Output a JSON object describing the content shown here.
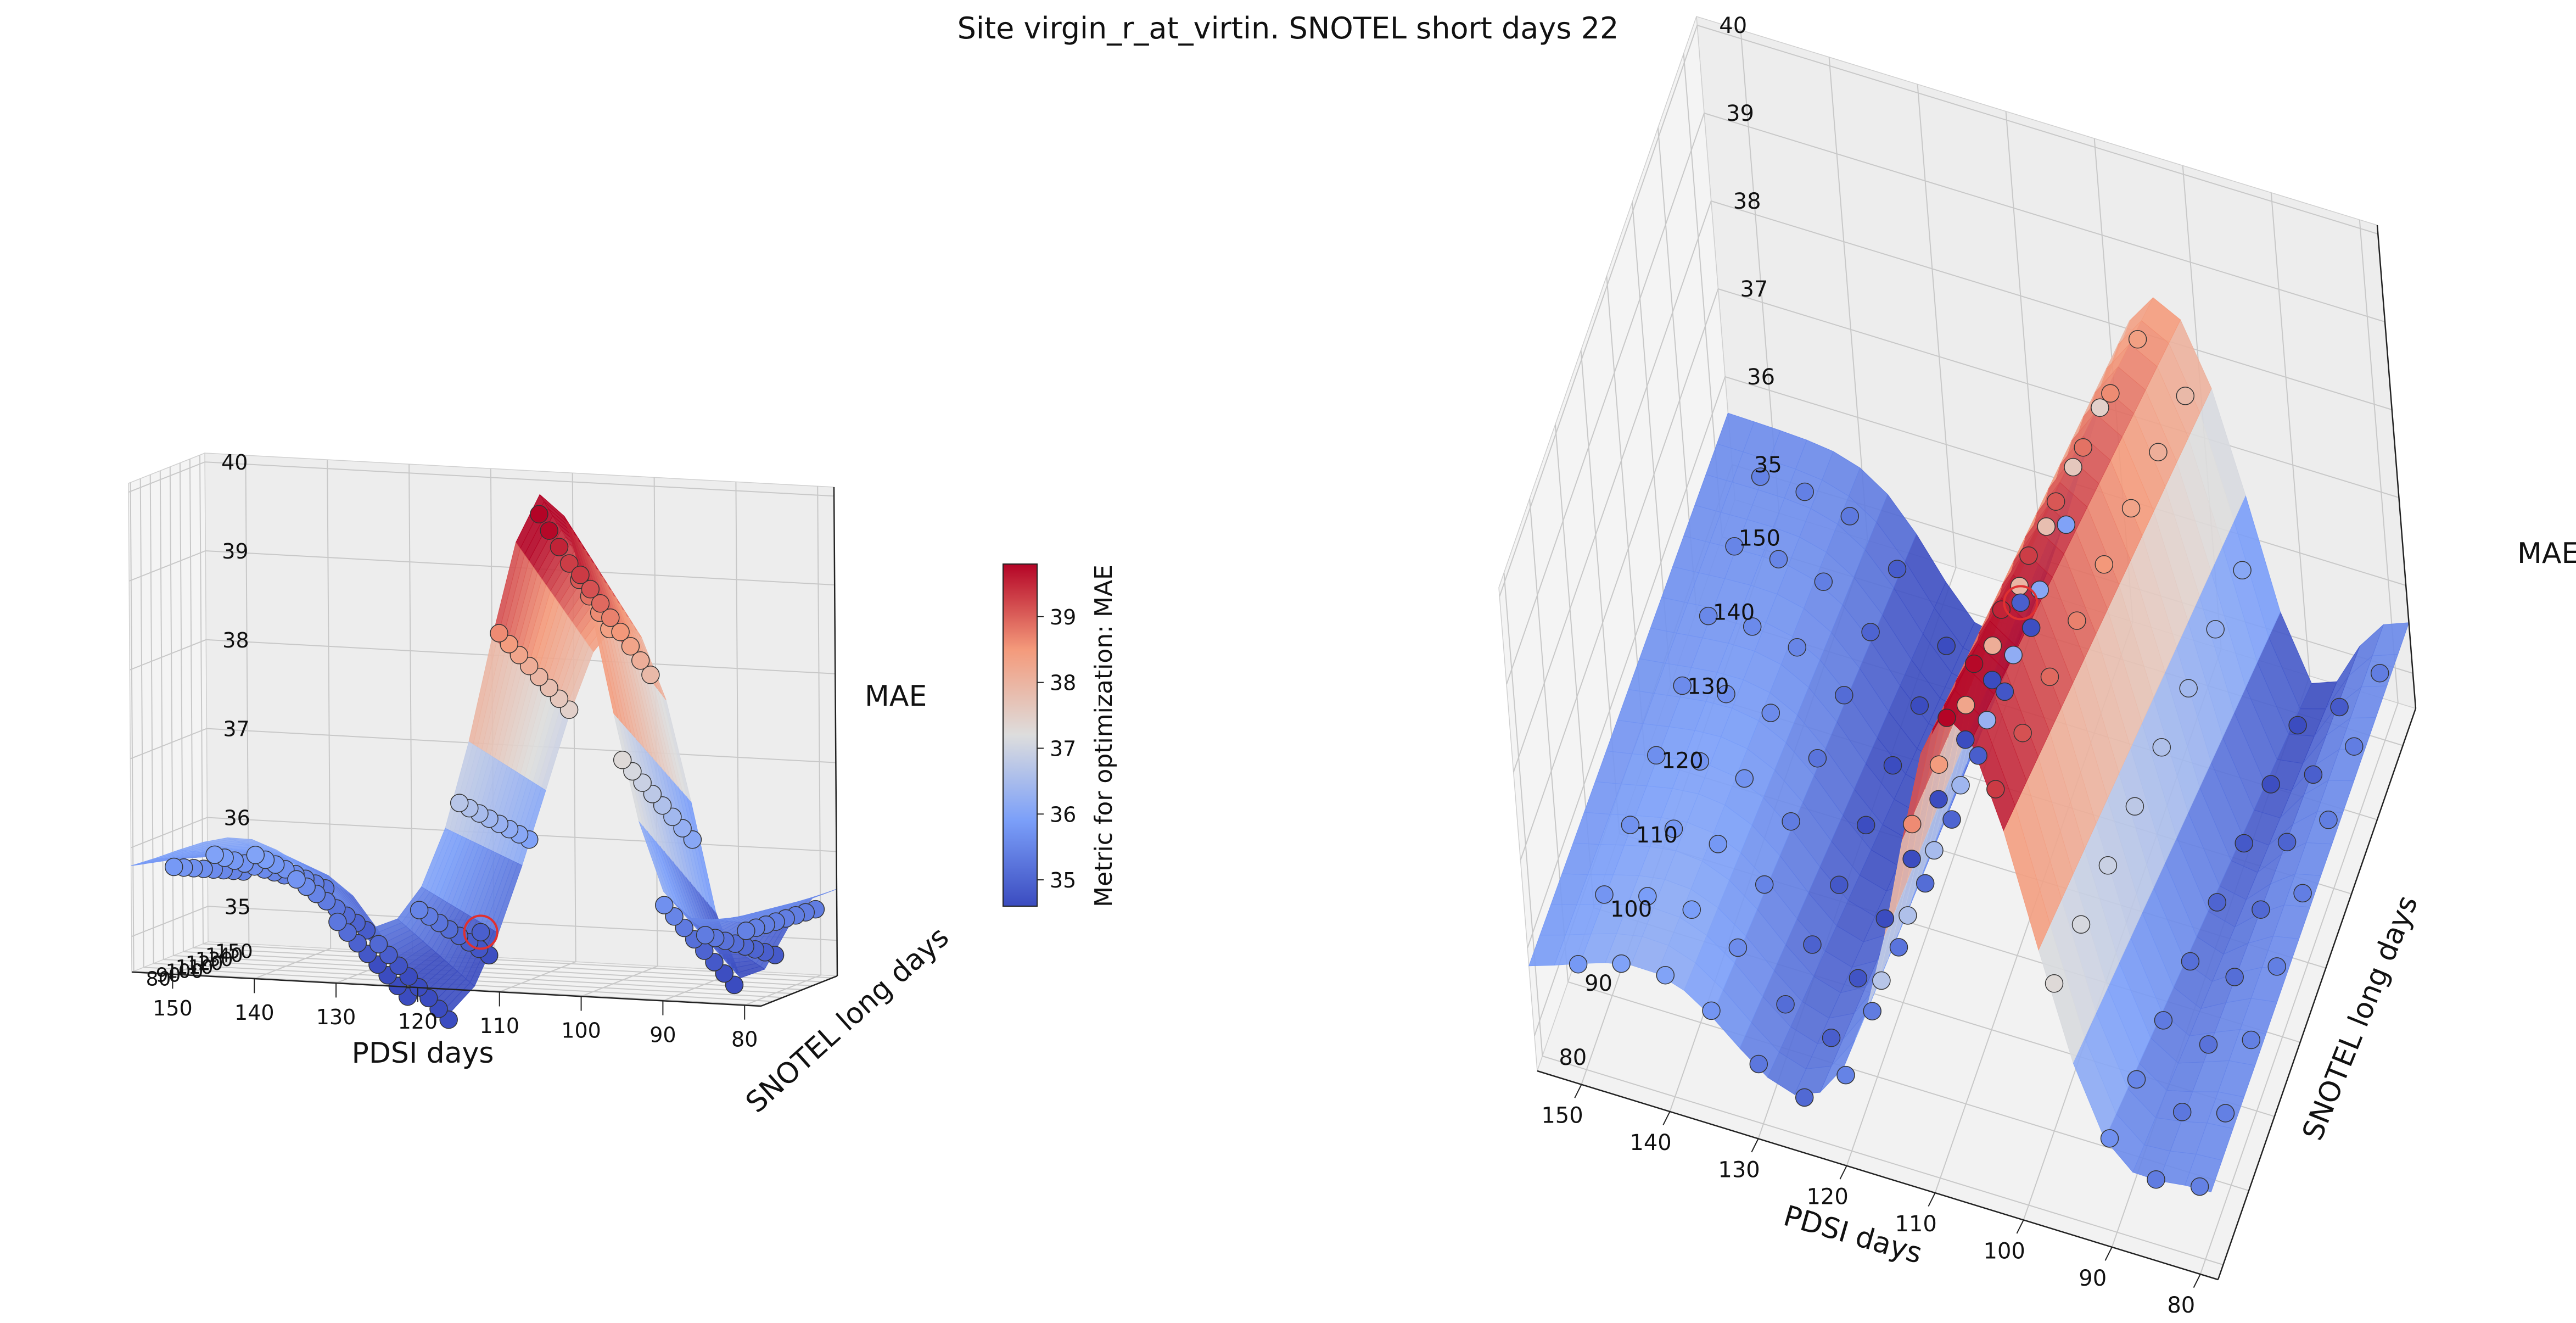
{
  "title": "Site virgin_r_at_virtin. SNOTEL short days 22",
  "colorbar": {
    "label": "Metric for optimization: MAE",
    "ticks": [
      "35",
      "36",
      "37",
      "38",
      "39"
    ],
    "vmin": 34.6,
    "vmax": 39.8,
    "colormap": "coolwarm",
    "low_color": "#3b4cc0",
    "mid_color": "#dddddd",
    "high_color": "#b40426"
  },
  "chart_data": [
    {
      "type": "surface+scatter3d",
      "name": "left-view",
      "xlabel": "PDSI days",
      "ylabel": "SNOTEL long days",
      "zlabel": "MAE",
      "xticks": [
        "150",
        "140",
        "130",
        "120",
        "110",
        "100",
        "90",
        "80"
      ],
      "yticks": [
        "80",
        "90",
        "100",
        "110",
        "120",
        "130",
        "140",
        "150"
      ],
      "zticks": [
        "35",
        "36",
        "37",
        "38",
        "39",
        "40"
      ],
      "xlim": [
        78,
        155
      ],
      "ylim": [
        78,
        155
      ],
      "zlim": [
        34.6,
        40.1
      ],
      "best_point": {
        "pdsi": 121,
        "snotel": 150,
        "mae": 34.9
      }
    },
    {
      "type": "surface+scatter3d",
      "name": "right-view",
      "xlabel": "PDSI days",
      "ylabel": "SNOTEL long days",
      "zlabel": "MAE",
      "xticks": [
        "150",
        "140",
        "130",
        "120",
        "110",
        "100",
        "90",
        "80"
      ],
      "yticks": [
        "80",
        "90",
        "100",
        "110",
        "120",
        "130",
        "140",
        "150"
      ],
      "zticks": [
        "35",
        "36",
        "37",
        "38",
        "39",
        "40"
      ],
      "xlim": [
        78,
        155
      ],
      "ylim": [
        78,
        155
      ],
      "zlim": [
        34.6,
        40.1
      ],
      "best_point": {
        "pdsi": 121,
        "snotel": 150,
        "mae": 34.9
      }
    }
  ]
}
